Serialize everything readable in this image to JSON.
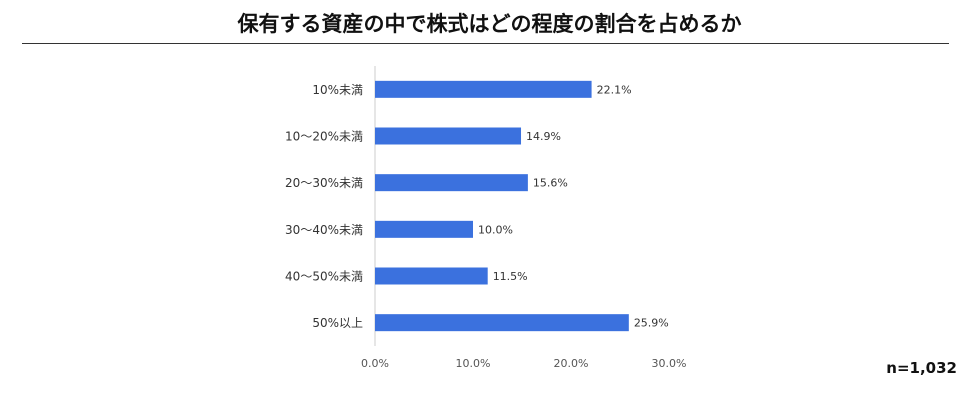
{
  "title": "保有する資産の中で株式はどの程度の割合を占めるか",
  "sample_size": "n=1,032",
  "colors": {
    "bar": "#3b71de",
    "axis_line": "#cccccc",
    "text": "#333333",
    "tick": "#555555"
  },
  "chart_data": {
    "type": "bar",
    "orientation": "horizontal",
    "categories": [
      "10%未満",
      "10～20%未満",
      "20～30%未満",
      "30～40%未満",
      "40～50%未満",
      "50%以上"
    ],
    "values": [
      22.1,
      14.9,
      15.6,
      10.0,
      11.5,
      25.9
    ],
    "value_labels": [
      "22.1%",
      "14.9%",
      "15.6%",
      "10.0%",
      "11.5%",
      "25.9%"
    ],
    "xlim": [
      0,
      30
    ],
    "xticks": [
      0,
      10,
      20,
      30
    ],
    "xtick_labels": [
      "0.0%",
      "10.0%",
      "20.0%",
      "30.0%"
    ],
    "grid": false,
    "legend": "none"
  }
}
